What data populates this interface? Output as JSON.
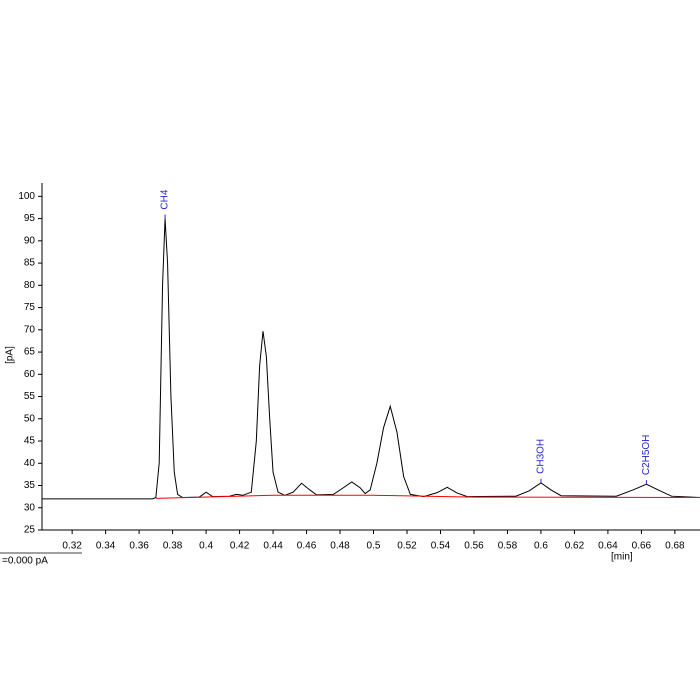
{
  "chart_data": {
    "type": "line",
    "y_label": "[pA]",
    "x_label": "[min]",
    "footer_text": "=0.000 pA",
    "xlim": [
      0.302,
      0.695
    ],
    "ylim": [
      25,
      103
    ],
    "xticks": [
      0.32,
      0.34,
      0.36,
      0.38,
      0.4,
      0.42,
      0.44,
      0.46,
      0.48,
      0.5,
      0.52,
      0.54,
      0.56,
      0.58,
      0.6,
      0.62,
      0.64,
      0.66,
      0.68
    ],
    "yticks": [
      25,
      30,
      35,
      40,
      45,
      50,
      55,
      60,
      65,
      70,
      75,
      80,
      85,
      90,
      95,
      100
    ],
    "grid": false,
    "series": [
      {
        "color": "#000000",
        "x": [
          0.302,
          0.368,
          0.37,
          0.372,
          0.374,
          0.3755,
          0.377,
          0.379,
          0.381,
          0.383,
          0.386,
          0.396,
          0.4,
          0.404,
          0.414,
          0.418,
          0.422,
          0.427,
          0.43,
          0.432,
          0.434,
          0.436,
          0.438,
          0.44,
          0.443,
          0.447,
          0.452,
          0.457,
          0.462,
          0.466,
          0.476,
          0.482,
          0.487,
          0.492,
          0.495,
          0.498,
          0.502,
          0.506,
          0.51,
          0.514,
          0.518,
          0.522,
          0.53,
          0.538,
          0.544,
          0.55,
          0.556,
          0.585,
          0.593,
          0.6,
          0.606,
          0.612,
          0.645,
          0.655,
          0.663,
          0.67,
          0.678,
          0.695
        ],
        "values": [
          32,
          32,
          32.3,
          40,
          80,
          95,
          85,
          55,
          38,
          33,
          32.3,
          32.4,
          33.5,
          32.5,
          32.6,
          33,
          32.8,
          33.5,
          45,
          62,
          69.7,
          64,
          50,
          38,
          33.5,
          32.8,
          33.5,
          35.5,
          34,
          32.9,
          33,
          34.5,
          35.8,
          34.5,
          33.2,
          34,
          40,
          48,
          52.8,
          47,
          37,
          33,
          32.5,
          33.4,
          34.6,
          33.3,
          32.5,
          32.6,
          33.8,
          35.6,
          34,
          32.7,
          32.6,
          34,
          35.3,
          34,
          32.6,
          32.3
        ]
      },
      {
        "color": "#ff0000",
        "x": [
          0.37,
          0.44,
          0.5,
          0.56,
          0.695
        ],
        "values": [
          32.1,
          32.8,
          32.8,
          32.4,
          32.3
        ]
      }
    ],
    "annotations": [
      {
        "text": "CH4",
        "x": 0.3755,
        "y": 95,
        "color": "#1f1fd0"
      },
      {
        "text": "CH3OH",
        "x": 0.6,
        "y": 35.6,
        "color": "#1f1fd0"
      },
      {
        "text": "C2H5OH",
        "x": 0.663,
        "y": 35.3,
        "color": "#1f1fd0"
      }
    ]
  }
}
